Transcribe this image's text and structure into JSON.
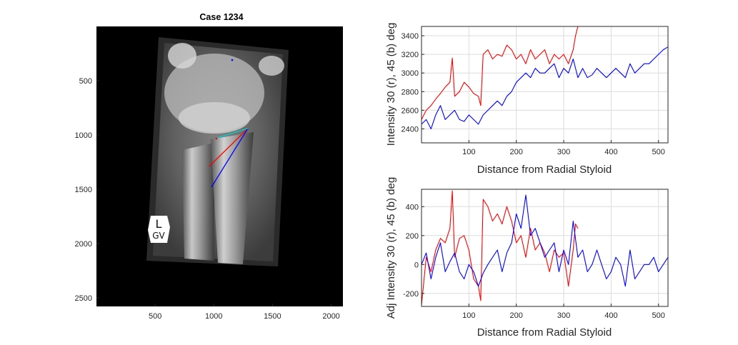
{
  "chart_data": [
    {
      "type": "image",
      "title": "Case 1234",
      "xticks": [
        "500",
        "1000",
        "1500",
        "2000"
      ],
      "yticks": [
        "500",
        "1000",
        "1500",
        "2000",
        "2500"
      ],
      "xlim": [
        0,
        2100
      ],
      "ylim": [
        0,
        2580
      ],
      "marker_label_line1": "L",
      "marker_label_line2": "GV",
      "overlay_lines": [
        {
          "color": "#ff0000",
          "x": [
            1290,
            960
          ],
          "y": [
            940,
            1290
          ]
        },
        {
          "color": "#0000ff",
          "x": [
            1290,
            980
          ],
          "y": [
            940,
            1480
          ]
        },
        {
          "color": "#00d0d0",
          "x": [
            1020,
            1290
          ],
          "y": [
            1030,
            940
          ]
        }
      ]
    },
    {
      "type": "line",
      "title": "",
      "xlabel": "Distance from Radial Styloid",
      "ylabel": "Intensity 30 (r), 45 (b) deg",
      "xlim": [
        0,
        520
      ],
      "ylim": [
        2250,
        3500
      ],
      "xticks": [
        "100",
        "200",
        "300",
        "400",
        "500"
      ],
      "yticks": [
        "2400",
        "2600",
        "2800",
        "3000",
        "3200",
        "3400"
      ],
      "grid": true,
      "series": [
        {
          "color": "#ff0000",
          "x": [
            0,
            10,
            20,
            30,
            40,
            50,
            60,
            65,
            70,
            80,
            90,
            100,
            110,
            120,
            125,
            130,
            140,
            150,
            160,
            170,
            180,
            190,
            200,
            210,
            220,
            230,
            240,
            250,
            260,
            270,
            280,
            290,
            300,
            310,
            320,
            325,
            330
          ],
          "y": [
            2500,
            2600,
            2650,
            2720,
            2780,
            2850,
            2900,
            3160,
            2750,
            2800,
            2900,
            2850,
            2780,
            2750,
            2650,
            3200,
            3250,
            3150,
            3200,
            3180,
            3300,
            3250,
            3150,
            3200,
            3100,
            3250,
            3150,
            3200,
            3250,
            3100,
            3200,
            3150,
            3200,
            3100,
            3250,
            3400,
            3500
          ]
        },
        {
          "color": "#0000ff",
          "x": [
            0,
            10,
            20,
            30,
            40,
            50,
            60,
            70,
            80,
            90,
            100,
            110,
            120,
            130,
            140,
            150,
            160,
            170,
            180,
            190,
            200,
            210,
            220,
            230,
            240,
            250,
            260,
            270,
            280,
            290,
            300,
            310,
            320,
            330,
            340,
            350,
            360,
            370,
            380,
            390,
            400,
            410,
            420,
            430,
            440,
            450,
            460,
            470,
            480,
            490,
            500,
            510,
            520
          ],
          "y": [
            2450,
            2500,
            2400,
            2550,
            2650,
            2500,
            2550,
            2600,
            2500,
            2480,
            2550,
            2500,
            2450,
            2550,
            2600,
            2650,
            2700,
            2650,
            2750,
            2800,
            2900,
            2950,
            3000,
            2950,
            3050,
            3000,
            3000,
            3050,
            3100,
            2950,
            3050,
            3000,
            3150,
            2950,
            3050,
            2950,
            2980,
            3050,
            3000,
            2950,
            3000,
            3050,
            3000,
            2950,
            3100,
            3000,
            3050,
            3100,
            3100,
            3150,
            3200,
            3250,
            3280
          ]
        }
      ]
    },
    {
      "type": "line",
      "title": "",
      "xlabel": "Distance from Radial Styloid",
      "ylabel": "Adj Intensity 30 (r), 45 (b) deg",
      "xlim": [
        0,
        520
      ],
      "ylim": [
        -290,
        520
      ],
      "xticks": [
        "100",
        "200",
        "300",
        "400",
        "500"
      ],
      "yticks": [
        "-200",
        "0",
        "200",
        "400"
      ],
      "grid": true,
      "series": [
        {
          "color": "#ff0000",
          "x": [
            0,
            10,
            20,
            30,
            40,
            50,
            60,
            65,
            70,
            80,
            90,
            100,
            110,
            120,
            125,
            130,
            140,
            150,
            160,
            170,
            180,
            190,
            200,
            210,
            220,
            230,
            240,
            250,
            260,
            270,
            280,
            290,
            300,
            310,
            320,
            325,
            330
          ],
          "y": [
            -280,
            50,
            -50,
            100,
            180,
            150,
            250,
            510,
            50,
            180,
            200,
            100,
            -100,
            -150,
            -250,
            450,
            400,
            300,
            350,
            280,
            400,
            300,
            150,
            200,
            50,
            250,
            100,
            150,
            80,
            -50,
            100,
            50,
            80,
            -150,
            100,
            280,
            250
          ]
        },
        {
          "color": "#0000ff",
          "x": [
            0,
            10,
            20,
            30,
            40,
            50,
            60,
            70,
            80,
            90,
            100,
            110,
            120,
            130,
            140,
            150,
            160,
            170,
            180,
            190,
            200,
            210,
            220,
            230,
            240,
            250,
            260,
            270,
            280,
            290,
            300,
            310,
            320,
            330,
            340,
            350,
            360,
            370,
            380,
            390,
            400,
            410,
            420,
            430,
            440,
            450,
            460,
            470,
            480,
            490,
            500,
            510,
            520
          ],
          "y": [
            0,
            80,
            -100,
            50,
            150,
            -50,
            20,
            80,
            -50,
            -100,
            0,
            -50,
            -150,
            -60,
            0,
            50,
            100,
            -50,
            80,
            150,
            350,
            250,
            480,
            200,
            250,
            150,
            50,
            100,
            150,
            -50,
            100,
            0,
            300,
            50,
            100,
            -50,
            0,
            100,
            0,
            -100,
            -50,
            50,
            0,
            -150,
            100,
            -100,
            -50,
            0,
            0,
            50,
            -50,
            0,
            50
          ]
        }
      ]
    }
  ]
}
